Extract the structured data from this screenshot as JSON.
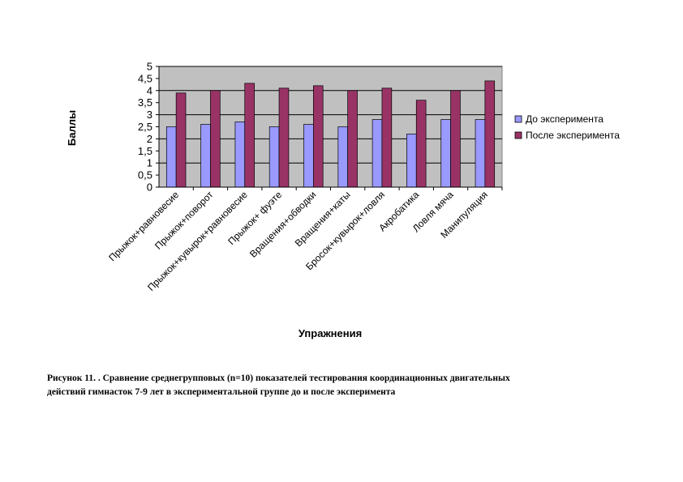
{
  "chart_data": {
    "type": "bar",
    "ylabel": "Баллы",
    "xlabel": "Упражнения",
    "ylim": [
      0,
      5
    ],
    "yticks": [
      "0",
      "0,5",
      "1",
      "1,5",
      "2",
      "2,5",
      "3",
      "3,5",
      "4",
      "4,5",
      "5"
    ],
    "grid": true,
    "legend_position": "right",
    "categories": [
      "Прыжок+равновесие",
      "Прыжок+поворот",
      "Прыжок+кувырок+равновесие",
      "Прыжок+ фуэте",
      "Вращения+обводки",
      "Вращения+каты",
      "Бросок+кувырок+ловля",
      "Акробатика",
      "Ловля мяча",
      "Манипуляция"
    ],
    "series": [
      {
        "name": "До эксперимента",
        "color": "#9999ff",
        "values": [
          2.5,
          2.6,
          2.7,
          2.5,
          2.6,
          2.5,
          2.8,
          2.2,
          2.8,
          2.8
        ]
      },
      {
        "name": "После эксперимента",
        "color": "#993366",
        "values": [
          3.9,
          4.0,
          4.3,
          4.1,
          4.2,
          4.0,
          4.1,
          3.6,
          4.0,
          4.4
        ]
      }
    ]
  },
  "caption": {
    "line1": "Рисунок 11. . Сравнение среднегрупповых (n=10) показателей тестирования координационных двигательных",
    "line2": "действий гимнасток 7-9 лет в экспериментальной группе до и после эксперимента"
  }
}
